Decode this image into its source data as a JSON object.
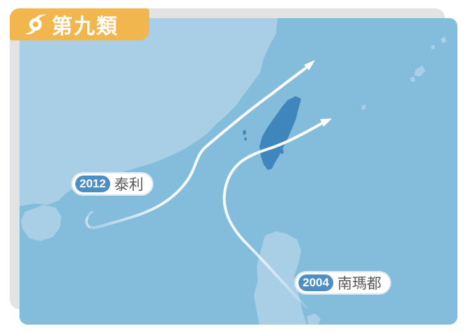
{
  "badge": {
    "text": "第九類",
    "icon": "typhoon-symbol-icon",
    "color": "#f1b64d"
  },
  "tracks": [
    {
      "year": "2012",
      "name": "泰利"
    },
    {
      "year": "2004",
      "name": "南瑪都"
    }
  ],
  "colors": {
    "sea": "#84bcdc",
    "land": "#a9cfe7",
    "taiwan": "#3f86bd",
    "track": "#ffffff",
    "label_pill": "#4d8fc3"
  }
}
